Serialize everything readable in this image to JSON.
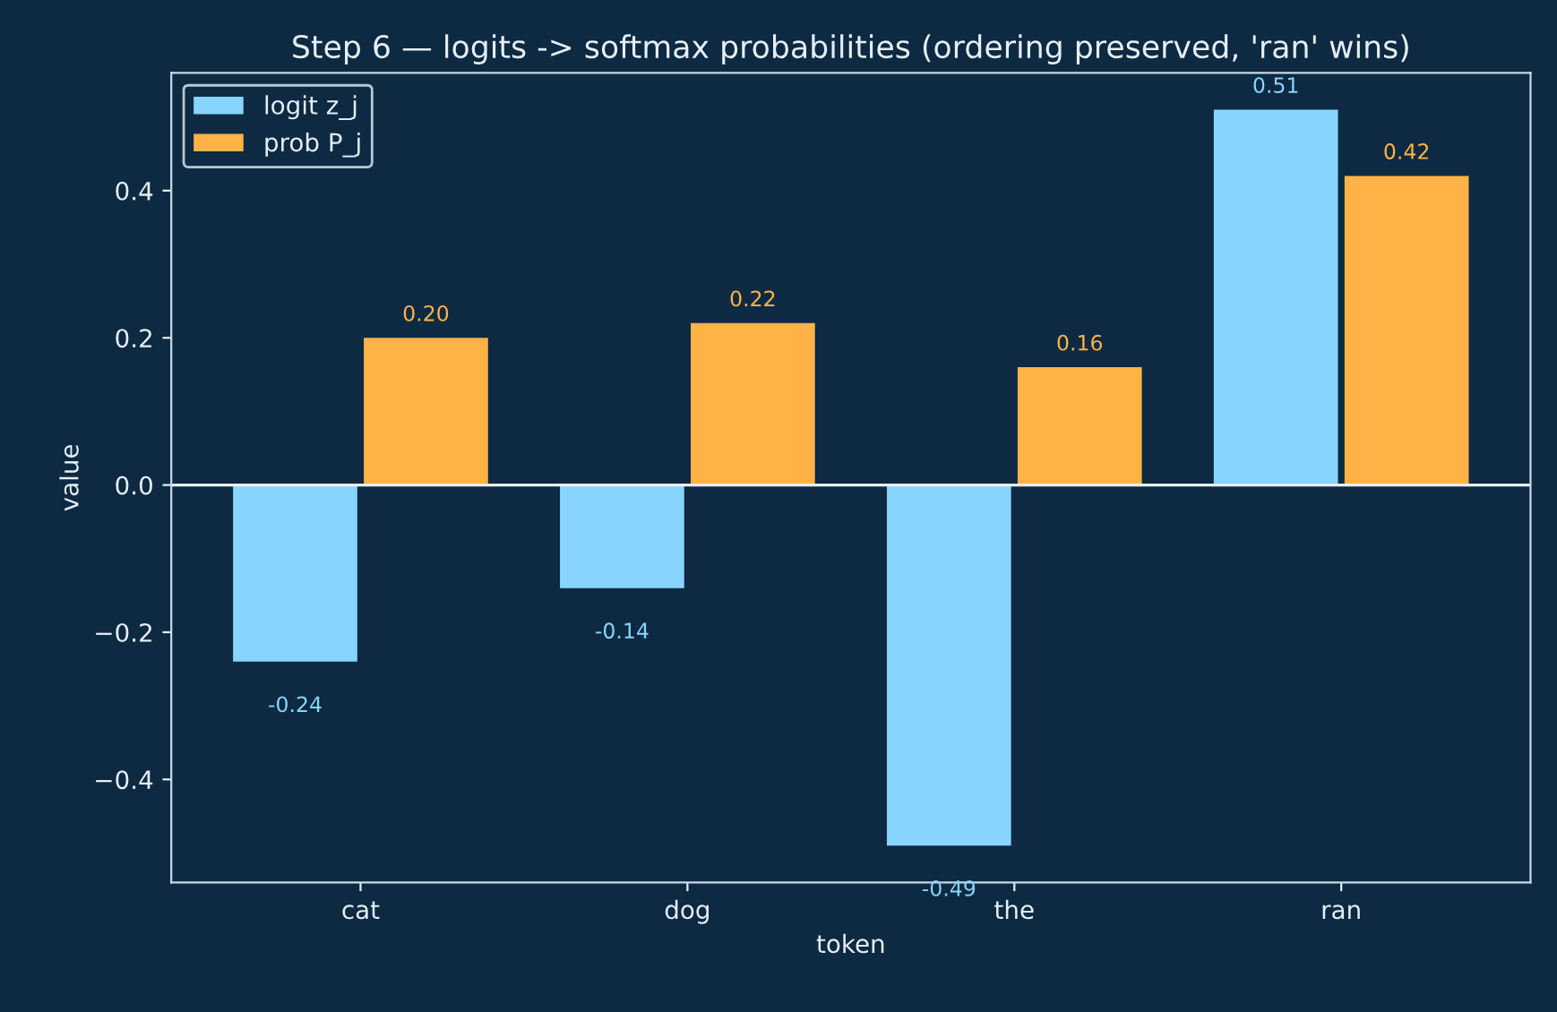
{
  "chart_data": {
    "type": "bar",
    "title": "Step 6 — logits -> softmax probabilities (ordering preserved, 'ran' wins)",
    "xlabel": "token",
    "ylabel": "value",
    "categories": [
      "cat",
      "dog",
      "the",
      "ran"
    ],
    "series": [
      {
        "name": "logit z_j",
        "color": "#87d4ff",
        "values": [
          -0.24,
          -0.14,
          -0.49,
          0.51
        ],
        "value_labels": [
          "-0.24",
          "-0.14",
          "-0.49",
          "0.51"
        ]
      },
      {
        "name": "prob P_j",
        "color": "#ffb347",
        "values": [
          0.2,
          0.22,
          0.16,
          0.42
        ],
        "value_labels": [
          "0.20",
          "0.22",
          "0.16",
          "0.42"
        ]
      }
    ],
    "ylim": [
      -0.54,
      0.56
    ],
    "yticks": [
      {
        "value": -0.4,
        "label": "−0.4"
      },
      {
        "value": -0.2,
        "label": "−0.2"
      },
      {
        "value": 0,
        "label": "0.0"
      },
      {
        "value": 0.2,
        "label": "0.2"
      },
      {
        "value": 0.4,
        "label": "0.4"
      }
    ],
    "ref_lines": [
      {
        "axis": "y",
        "value": 0,
        "color": "#e6eef5"
      }
    ],
    "legend": "top left",
    "grid": false
  }
}
